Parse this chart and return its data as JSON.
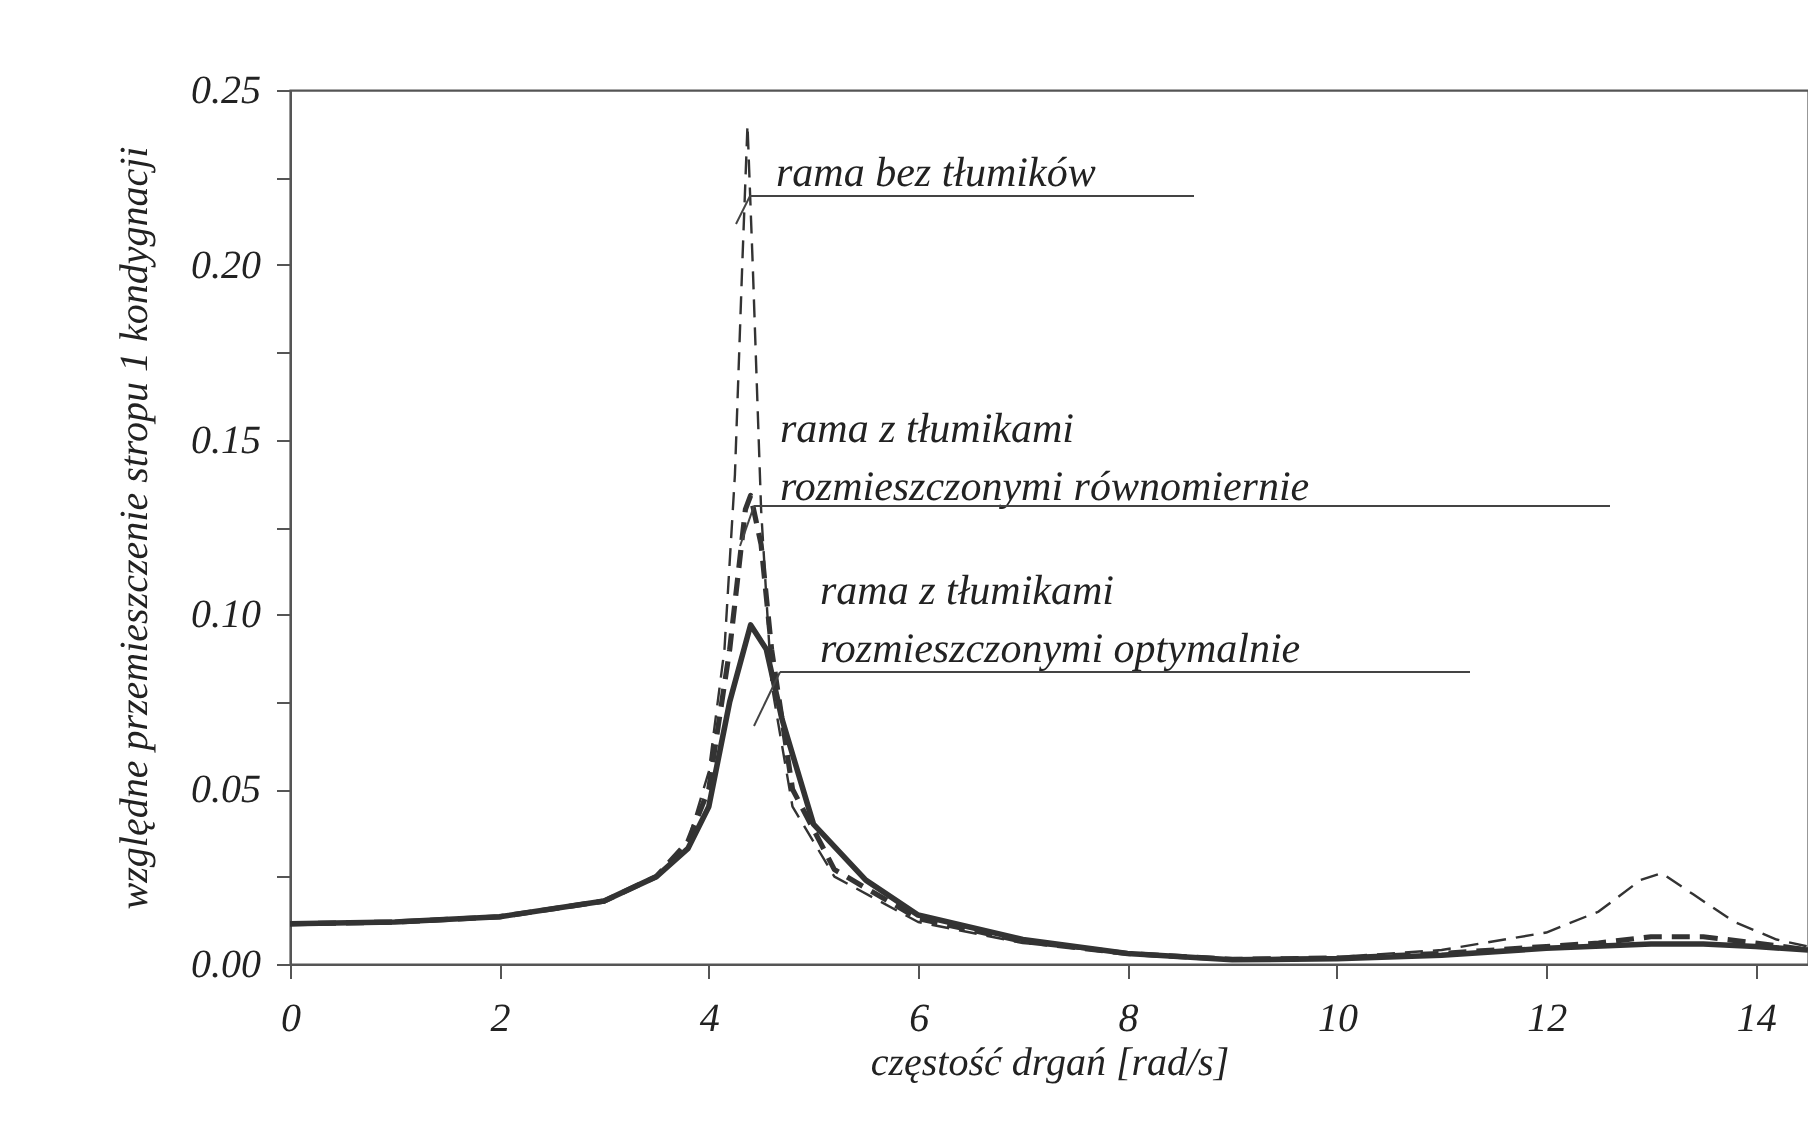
{
  "chart_data": {
    "type": "line",
    "xlabel": "częstość drgań [rad/s]",
    "ylabel": "względne przemieszczenie stropu 1 kondygnacji",
    "xlim": [
      0,
      14.5
    ],
    "ylim": [
      0,
      0.25
    ],
    "xticks": [
      0,
      2,
      4,
      6,
      8,
      10,
      12,
      14
    ],
    "yticks": [
      {
        "value": 0,
        "label": "0.00"
      },
      {
        "value": 0.025,
        "label": null
      },
      {
        "value": 0.05,
        "label": "0.05"
      },
      {
        "value": 0.075,
        "label": null
      },
      {
        "value": 0.1,
        "label": "0.10"
      },
      {
        "value": 0.125,
        "label": null
      },
      {
        "value": 0.15,
        "label": "0.15"
      },
      {
        "value": 0.175,
        "label": null
      },
      {
        "value": 0.2,
        "label": "0.20"
      },
      {
        "value": 0.225,
        "label": null
      },
      {
        "value": 0.25,
        "label": "0.25"
      }
    ],
    "grid": false,
    "series": [
      {
        "name": "rama bez tłumików",
        "color": "#333333",
        "line_style": "dashed",
        "x": [
          0,
          1,
          2,
          3,
          3.5,
          3.8,
          4.0,
          4.15,
          4.25,
          4.32,
          4.37,
          4.42,
          4.5,
          4.6,
          4.8,
          5.2,
          6,
          7,
          8,
          9,
          10,
          11,
          12,
          12.5,
          12.9,
          13.1,
          13.4,
          13.8,
          14.2,
          14.5
        ],
        "values": [
          0.0115,
          0.012,
          0.0135,
          0.018,
          0.025,
          0.035,
          0.055,
          0.09,
          0.14,
          0.2,
          0.24,
          0.2,
          0.13,
          0.08,
          0.045,
          0.025,
          0.012,
          0.006,
          0.003,
          0.0015,
          0.002,
          0.004,
          0.009,
          0.015,
          0.024,
          0.026,
          0.02,
          0.012,
          0.007,
          0.005
        ]
      },
      {
        "name": "rama z tłumikami\nrozmieszczonymi równomiernie",
        "color": "#333333",
        "line_style": "dashed",
        "x": [
          0,
          1,
          2,
          3,
          3.5,
          3.8,
          4.0,
          4.2,
          4.35,
          4.4,
          4.5,
          4.6,
          4.8,
          5.2,
          6,
          7,
          8,
          9,
          10,
          11,
          12,
          12.5,
          13,
          13.5,
          14,
          14.5
        ],
        "values": [
          0.0115,
          0.012,
          0.0135,
          0.018,
          0.025,
          0.035,
          0.05,
          0.09,
          0.13,
          0.134,
          0.12,
          0.09,
          0.05,
          0.027,
          0.013,
          0.0065,
          0.003,
          0.0013,
          0.0017,
          0.003,
          0.005,
          0.006,
          0.0078,
          0.0078,
          0.006,
          0.004
        ]
      },
      {
        "name": "rama z tłumikami\nrozmieszczonymi optymalnie",
        "color": "#333333",
        "line_style": "solid",
        "x": [
          0,
          1,
          2,
          3,
          3.5,
          3.8,
          4.0,
          4.2,
          4.4,
          4.55,
          4.7,
          5,
          5.5,
          6,
          7,
          8,
          9,
          10,
          11,
          12,
          13,
          13.5,
          14,
          14.5
        ],
        "values": [
          0.0115,
          0.012,
          0.0135,
          0.018,
          0.025,
          0.033,
          0.045,
          0.075,
          0.097,
          0.09,
          0.07,
          0.04,
          0.024,
          0.014,
          0.007,
          0.003,
          0.0012,
          0.0015,
          0.0025,
          0.0045,
          0.0057,
          0.0057,
          0.005,
          0.004
        ]
      }
    ]
  }
}
